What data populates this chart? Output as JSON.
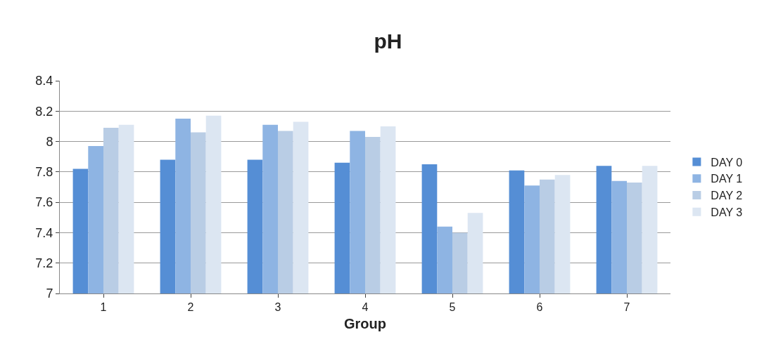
{
  "chart_data": {
    "type": "bar",
    "title": "pH",
    "xlabel": "Group",
    "categories": [
      "1",
      "2",
      "3",
      "4",
      "5",
      "6",
      "7"
    ],
    "series": [
      {
        "name": "DAY 0",
        "color": "#558ed5",
        "values": [
          7.82,
          7.88,
          7.88,
          7.86,
          7.85,
          7.81,
          7.84
        ]
      },
      {
        "name": "DAY 1",
        "color": "#8eb4e3",
        "values": [
          7.97,
          8.15,
          8.11,
          8.07,
          7.44,
          7.71,
          7.74
        ]
      },
      {
        "name": "DAY 2",
        "color": "#b9cde5",
        "values": [
          8.09,
          8.06,
          8.07,
          8.03,
          7.4,
          7.75,
          7.73
        ]
      },
      {
        "name": "DAY 3",
        "color": "#dce6f2",
        "values": [
          8.11,
          8.17,
          8.13,
          8.1,
          7.53,
          7.78,
          7.84
        ]
      }
    ],
    "ylim": [
      7,
      8.4
    ],
    "yticks": [
      7,
      7.2,
      7.4,
      7.6,
      7.8,
      8,
      8.2,
      8.4
    ],
    "grid": "y",
    "legend": "right"
  }
}
